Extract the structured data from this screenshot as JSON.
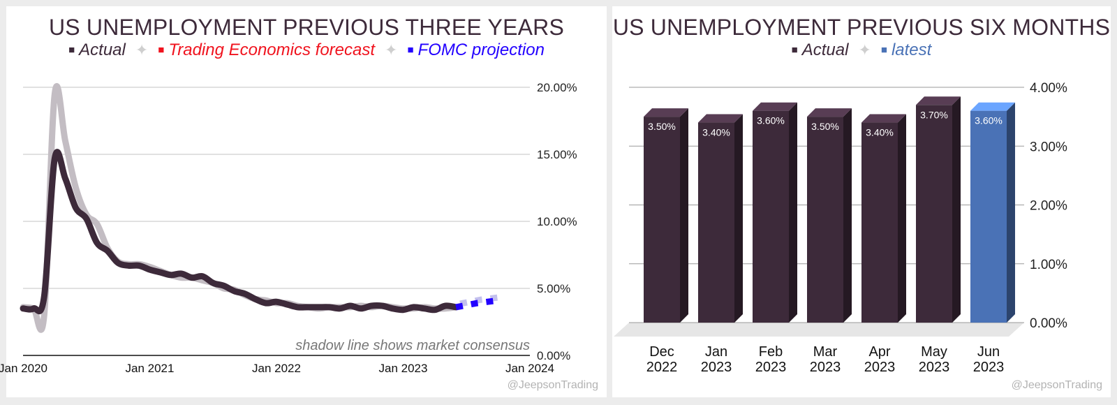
{
  "credit": "@JeepsonTrading",
  "chart_data": [
    {
      "type": "line",
      "title": "US UNEMPLOYMENT PREVIOUS THREE YEARS",
      "legend": [
        {
          "label": "Actual",
          "color": "#3d2a3a"
        },
        {
          "label": "Trading Economics forecast",
          "color": "#f0131e"
        },
        {
          "label": "FOMC projection",
          "color": "#2200ff"
        }
      ],
      "note": "shadow line shows market consensus",
      "y_ticks": [
        "20.00%",
        "15.00%",
        "10.00%",
        "5.00%",
        "0.00%"
      ],
      "ylim": [
        0,
        20
      ],
      "x_ticks": [
        "Jan 2020",
        "Jan 2021",
        "Jan 2022",
        "Jan 2023",
        "Jan 2024"
      ],
      "xlim": [
        "2020-01",
        "2024-01"
      ],
      "grid": true,
      "series": [
        {
          "name": "Actual",
          "color": "#3d2a3a",
          "x": [
            "2020-01",
            "2020-02",
            "2020-03",
            "2020-04",
            "2020-05",
            "2020-06",
            "2020-07",
            "2020-08",
            "2020-09",
            "2020-10",
            "2020-11",
            "2020-12",
            "2021-01",
            "2021-02",
            "2021-03",
            "2021-04",
            "2021-05",
            "2021-06",
            "2021-07",
            "2021-08",
            "2021-09",
            "2021-10",
            "2021-11",
            "2021-12",
            "2022-01",
            "2022-02",
            "2022-03",
            "2022-04",
            "2022-05",
            "2022-06",
            "2022-07",
            "2022-08",
            "2022-09",
            "2022-10",
            "2022-11",
            "2022-12",
            "2023-01",
            "2023-02",
            "2023-03",
            "2023-04",
            "2023-05",
            "2023-06"
          ],
          "values": [
            3.5,
            3.5,
            4.4,
            14.7,
            13.2,
            11.0,
            10.2,
            8.4,
            7.8,
            6.9,
            6.7,
            6.7,
            6.4,
            6.2,
            6.0,
            6.1,
            5.8,
            5.9,
            5.4,
            5.2,
            4.8,
            4.6,
            4.2,
            3.9,
            4.0,
            3.8,
            3.6,
            3.6,
            3.6,
            3.6,
            3.5,
            3.7,
            3.5,
            3.7,
            3.7,
            3.5,
            3.4,
            3.6,
            3.5,
            3.4,
            3.7,
            3.6
          ]
        },
        {
          "name": "market consensus",
          "color": "#c3bdc3",
          "x": [
            "2020-01",
            "2020-02",
            "2020-03",
            "2020-04",
            "2020-05",
            "2020-06",
            "2020-07",
            "2020-08",
            "2020-09",
            "2020-10",
            "2020-11",
            "2020-12",
            "2021-01",
            "2021-02",
            "2021-03",
            "2021-04",
            "2021-05",
            "2021-06",
            "2021-07",
            "2021-08",
            "2021-09",
            "2021-10",
            "2021-11",
            "2021-12",
            "2022-01",
            "2022-02",
            "2022-03",
            "2022-04",
            "2022-05",
            "2022-06",
            "2022-07",
            "2022-08",
            "2022-09",
            "2022-10",
            "2022-11",
            "2022-12",
            "2023-01",
            "2023-02",
            "2023-03",
            "2023-04",
            "2023-05",
            "2023-06"
          ],
          "values": [
            3.6,
            3.5,
            3.0,
            19.5,
            16.0,
            12.5,
            10.5,
            9.8,
            8.0,
            7.0,
            6.8,
            6.8,
            6.6,
            6.3,
            6.0,
            5.8,
            5.8,
            5.6,
            5.4,
            5.0,
            4.9,
            4.5,
            4.2,
            4.1,
            3.9,
            3.9,
            3.7,
            3.6,
            3.5,
            3.6,
            3.6,
            3.6,
            3.7,
            3.6,
            3.7,
            3.6,
            3.5,
            3.5,
            3.6,
            3.5,
            3.5,
            3.6
          ]
        },
        {
          "name": "FOMC projection",
          "color": "#2200ff",
          "x": [
            "2023-06",
            "2023-08",
            "2023-10"
          ],
          "values": [
            3.6,
            3.9,
            4.1
          ]
        }
      ]
    },
    {
      "type": "bar",
      "title": "US UNEMPLOYMENT PREVIOUS SIX MONTHS",
      "legend": [
        {
          "label": "Actual",
          "color": "#3d2a3a"
        },
        {
          "label": "latest",
          "color": "#4a72b6"
        }
      ],
      "categories": [
        [
          "Dec",
          "2022"
        ],
        [
          "Jan",
          "2023"
        ],
        [
          "Feb",
          "2023"
        ],
        [
          "Mar",
          "2023"
        ],
        [
          "Apr",
          "2023"
        ],
        [
          "May",
          "2023"
        ],
        [
          "Jun",
          "2023"
        ]
      ],
      "values": [
        3.5,
        3.4,
        3.6,
        3.5,
        3.4,
        3.7,
        3.6
      ],
      "labels": [
        "3.50%",
        "3.40%",
        "3.60%",
        "3.50%",
        "3.40%",
        "3.70%",
        "3.60%"
      ],
      "colors": [
        "#3d2a3a",
        "#3d2a3a",
        "#3d2a3a",
        "#3d2a3a",
        "#3d2a3a",
        "#3d2a3a",
        "#4a72b6"
      ],
      "y_ticks": [
        "4.00%",
        "3.00%",
        "2.00%",
        "1.00%",
        "0.00%"
      ],
      "ylim": [
        0,
        4
      ],
      "grid": true
    }
  ]
}
